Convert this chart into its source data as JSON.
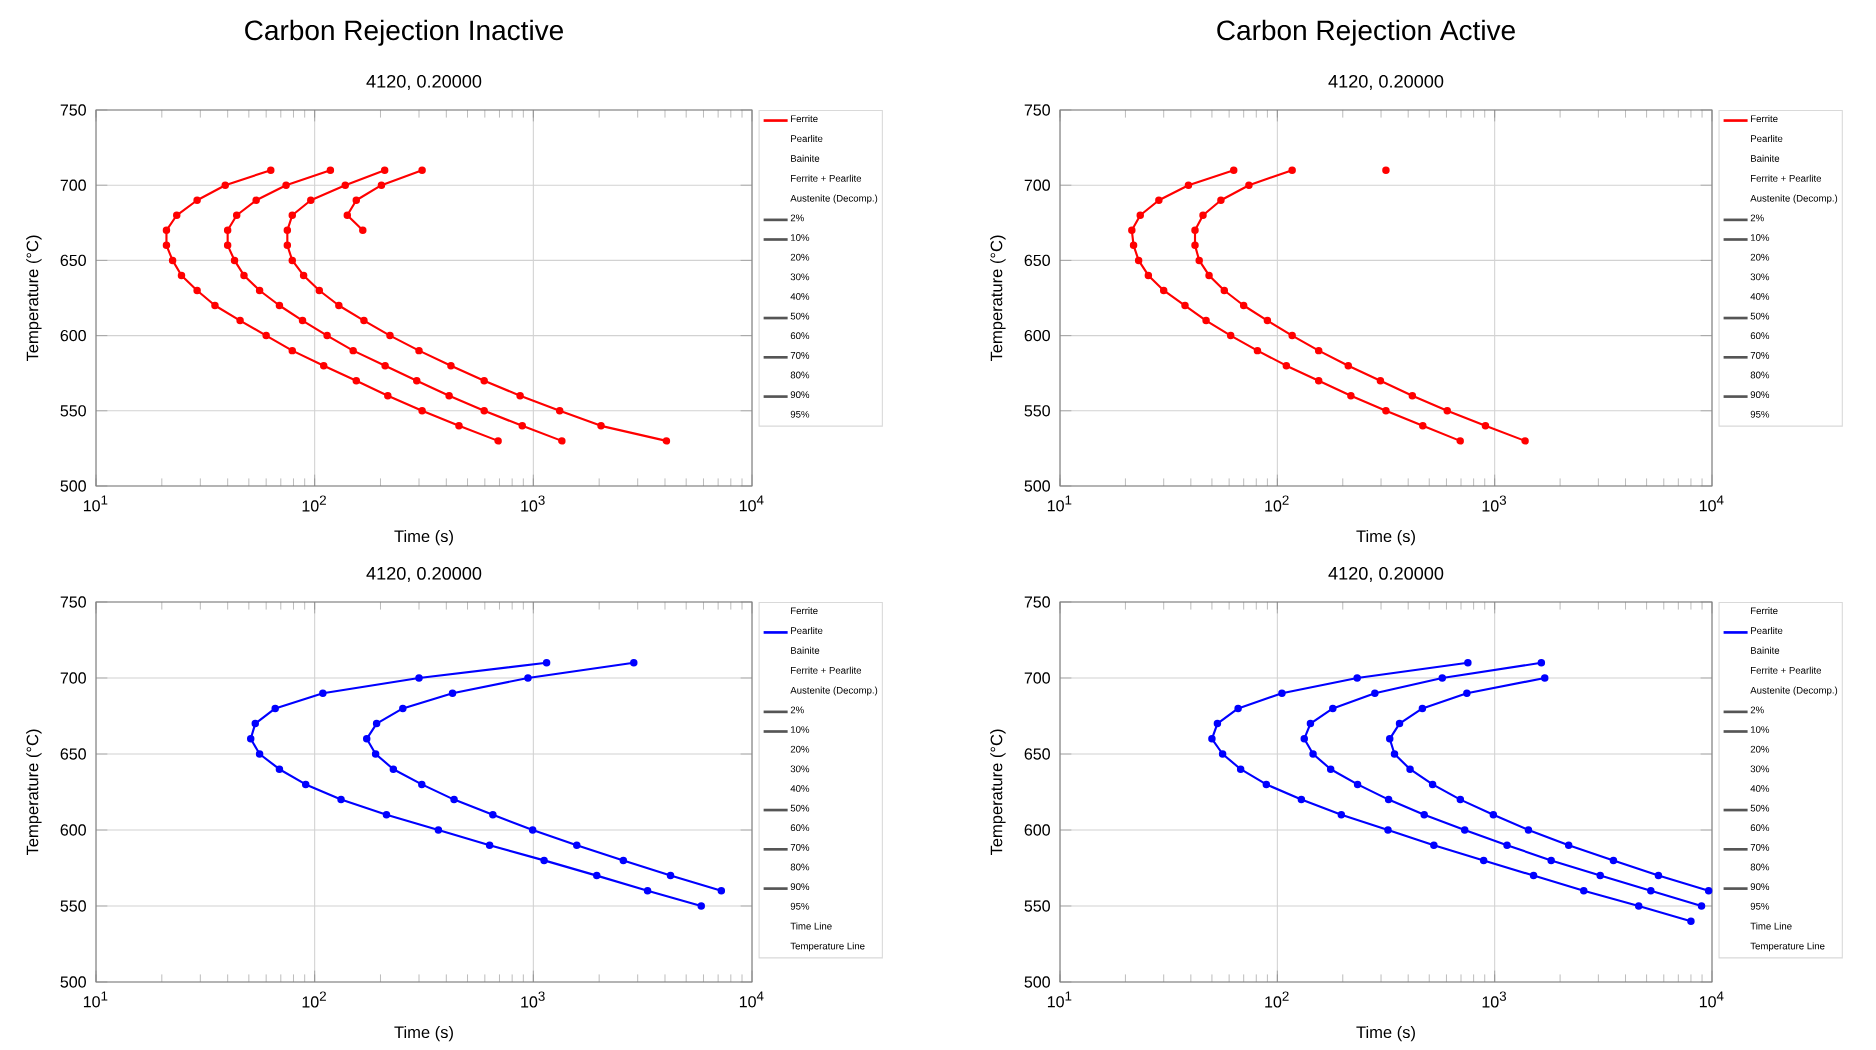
{
  "chart_data": [
    {
      "type": "line",
      "title": "Carbon Rejection Inactive",
      "subtitle": "4120, 0.20000",
      "xlabel": "Time (s)",
      "ylabel": "Temperature (°C)",
      "log": "x",
      "xlim": [
        10,
        10000
      ],
      "ylim": [
        500,
        750
      ],
      "xticks": [
        {
          "value": 10,
          "label": "10$^{1}$"
        },
        {
          "value": 100,
          "label": "10$^{2}$"
        },
        {
          "value": 1000,
          "label": "10$^{3}$"
        },
        {
          "value": 10000,
          "label": "10$^{4}$"
        }
      ],
      "yticks": [
        500,
        550,
        600,
        650,
        700,
        750
      ],
      "grid": true,
      "legend": "right",
      "marker": "circle",
      "line_style": "solid",
      "series": [
        {
          "name": "Ferrite",
          "color": "#ff0000",
          "x": [
            63,
            39,
            29,
            23.4,
            21,
            21,
            22.4,
            24.6,
            29,
            35,
            45.6,
            60,
            79,
            110,
            155,
            216,
            310,
            457,
            690
          ],
          "values": [
            710,
            700,
            690,
            680,
            670,
            660,
            650,
            640,
            630,
            620,
            610,
            600,
            590,
            580,
            570,
            560,
            550,
            540,
            530
          ]
        },
        {
          "name": "Pearlite"
        },
        {
          "name": "Bainite"
        },
        {
          "name": "Ferrite + Pearlite"
        },
        {
          "name": "Austenite (Decomp.)"
        },
        {
          "name": "2%",
          "color": "#555555"
        },
        {
          "name": "10%",
          "color": "#555555"
        },
        {
          "name": "20%"
        },
        {
          "name": "30%"
        },
        {
          "name": "40%"
        },
        {
          "name": "50%",
          "color": "#555555"
        },
        {
          "name": "60%"
        },
        {
          "name": "70%",
          "color": "#555555"
        },
        {
          "name": "80%"
        },
        {
          "name": "90%",
          "color": "#555555"
        },
        {
          "name": "95%"
        },
        {
          "color": "#ff0000",
          "x": [
            118,
            74,
            54,
            44,
            40,
            40,
            43,
            47.5,
            56,
            69,
            88,
            114,
            150,
            210,
            293,
            412,
            596,
            890,
            1350
          ],
          "values": [
            710,
            700,
            690,
            680,
            670,
            660,
            650,
            640,
            630,
            620,
            610,
            600,
            590,
            580,
            570,
            560,
            550,
            540,
            530
          ]
        },
        {
          "color": "#ff0000",
          "x": [
            209,
            138,
            96,
            79,
            75,
            75,
            79,
            89,
            105,
            129,
            168,
            221,
            300,
            420,
            596,
            870,
            1320,
            2040,
            4060
          ],
          "values": [
            710,
            700,
            690,
            680,
            670,
            660,
            650,
            640,
            630,
            620,
            610,
            600,
            590,
            580,
            570,
            560,
            550,
            540,
            530
          ]
        },
        {
          "color": "#ff0000",
          "x": [
            310,
            202,
            155,
            141,
            166
          ],
          "values": [
            710,
            700,
            690,
            680,
            670
          ]
        }
      ]
    },
    {
      "type": "line",
      "title": "Carbon Rejection Active",
      "subtitle": "4120, 0.20000",
      "xlabel": "Time (s)",
      "ylabel": "Temperature (°C)",
      "log": "x",
      "xlim": [
        10,
        10000
      ],
      "ylim": [
        500,
        750
      ],
      "xticks": [
        {
          "value": 10,
          "label": "10$^{1}$"
        },
        {
          "value": 100,
          "label": "10$^{2}$"
        },
        {
          "value": 1000,
          "label": "10$^{3}$"
        },
        {
          "value": 10000,
          "label": "10$^{4}$"
        }
      ],
      "yticks": [
        500,
        550,
        600,
        650,
        700,
        750
      ],
      "grid": true,
      "legend": "right",
      "marker": "circle",
      "line_style": "solid",
      "series": [
        {
          "name": "Ferrite",
          "color": "#ff0000",
          "x": [
            63,
            39,
            28.5,
            23.4,
            21.4,
            21.8,
            23,
            25.5,
            30,
            37.6,
            47,
            61,
            81,
            110,
            155,
            218,
            316,
            467,
            694
          ],
          "values": [
            710,
            700,
            690,
            680,
            670,
            660,
            650,
            640,
            630,
            620,
            610,
            600,
            590,
            580,
            570,
            560,
            550,
            540,
            530
          ]
        },
        {
          "name": "Pearlite"
        },
        {
          "name": "Bainite"
        },
        {
          "name": "Ferrite + Pearlite"
        },
        {
          "name": "Austenite (Decomp.)"
        },
        {
          "name": "2%",
          "color": "#555555"
        },
        {
          "name": "10%",
          "color": "#555555"
        },
        {
          "name": "20%"
        },
        {
          "name": "30%"
        },
        {
          "name": "40%"
        },
        {
          "name": "50%",
          "color": "#555555"
        },
        {
          "name": "60%"
        },
        {
          "name": "70%",
          "color": "#555555"
        },
        {
          "name": "80%"
        },
        {
          "name": "90%",
          "color": "#555555"
        },
        {
          "name": "95%"
        },
        {
          "color": "#ff0000",
          "x": [
            117,
            74,
            55,
            45.5,
            41.8,
            41.8,
            43.7,
            48.5,
            57,
            70,
            90,
            117,
            155,
            212,
            298,
            418,
            605,
            907,
            1380
          ],
          "values": [
            710,
            700,
            690,
            680,
            670,
            660,
            650,
            640,
            630,
            620,
            610,
            600,
            590,
            580,
            570,
            560,
            550,
            540,
            530
          ]
        },
        {
          "color": "#ff0000",
          "x": [
            316
          ],
          "values": [
            710
          ]
        }
      ]
    },
    {
      "type": "line",
      "title": "4120, 0.20000",
      "xlabel": "Time (s)",
      "ylabel": "Temperature (°C)",
      "log": "x",
      "xlim": [
        10,
        10000
      ],
      "ylim": [
        500,
        750
      ],
      "xticks": [
        {
          "value": 10,
          "label": "10$^{1}$"
        },
        {
          "value": 100,
          "label": "10$^{2}$"
        },
        {
          "value": 1000,
          "label": "10$^{3}$"
        },
        {
          "value": 10000,
          "label": "10$^{4}$"
        }
      ],
      "yticks": [
        500,
        550,
        600,
        650,
        700,
        750
      ],
      "grid": true,
      "legend": "right",
      "marker": "circle",
      "line_style": "solid",
      "series": [
        {
          "name": "Ferrite"
        },
        {
          "name": "Pearlite",
          "color": "#0000ff",
          "x": [
            1150,
            300,
            109,
            66,
            53.5,
            51,
            56,
            69,
            91,
            132,
            213,
            368,
            631,
            1120,
            1950,
            3330,
            5860
          ],
          "values": [
            710,
            700,
            690,
            680,
            670,
            660,
            650,
            640,
            630,
            620,
            610,
            600,
            590,
            580,
            570,
            560,
            550
          ]
        },
        {
          "name": "Bainite"
        },
        {
          "name": "Ferrite + Pearlite"
        },
        {
          "name": "Austenite (Decomp.)"
        },
        {
          "name": "2%",
          "color": "#555555"
        },
        {
          "name": "10%",
          "color": "#555555"
        },
        {
          "name": "20%"
        },
        {
          "name": "30%"
        },
        {
          "name": "40%"
        },
        {
          "name": "50%",
          "color": "#555555"
        },
        {
          "name": "60%"
        },
        {
          "name": "70%",
          "color": "#555555"
        },
        {
          "name": "80%"
        },
        {
          "name": "90%",
          "color": "#555555"
        },
        {
          "name": "95%"
        },
        {
          "name": "Time Line"
        },
        {
          "name": "Temperature Line"
        },
        {
          "color": "#0000ff",
          "x": [
            2880,
            945,
            427,
            253,
            192,
            173,
            190,
            229,
            309,
            434,
            653,
            993,
            1580,
            2580,
            4240,
            7240
          ],
          "values": [
            710,
            700,
            690,
            680,
            670,
            660,
            650,
            640,
            630,
            620,
            610,
            600,
            590,
            580,
            570,
            560
          ]
        }
      ]
    },
    {
      "type": "line",
      "title": "4120, 0.20000",
      "xlabel": "Time (s)",
      "ylabel": "Temperature (°C)",
      "log": "x",
      "xlim": [
        10,
        10000
      ],
      "ylim": [
        500,
        750
      ],
      "xticks": [
        {
          "value": 10,
          "label": "10$^{1}$"
        },
        {
          "value": 100,
          "label": "10$^{2}$"
        },
        {
          "value": 1000,
          "label": "10$^{3}$"
        },
        {
          "value": 10000,
          "label": "10$^{4}$"
        }
      ],
      "yticks": [
        500,
        550,
        600,
        650,
        700,
        750
      ],
      "grid": true,
      "legend": "right",
      "marker": "circle",
      "line_style": "solid",
      "series": [
        {
          "name": "Ferrite"
        },
        {
          "name": "Pearlite",
          "color": "#0000ff",
          "x": [
            753,
            233,
            105,
            66,
            53,
            50,
            56,
            67.8,
            89,
            129,
            197,
            323,
            525,
            890,
            1510,
            2570,
            4600,
            8000
          ],
          "values": [
            710,
            700,
            690,
            680,
            670,
            660,
            650,
            640,
            630,
            620,
            610,
            600,
            590,
            580,
            570,
            560,
            550,
            540
          ]
        },
        {
          "name": "Bainite"
        },
        {
          "name": "Ferrite + Pearlite"
        },
        {
          "name": "Austenite (Decomp.)"
        },
        {
          "name": "2%",
          "color": "#555555"
        },
        {
          "name": "10%",
          "color": "#555555"
        },
        {
          "name": "20%"
        },
        {
          "name": "30%"
        },
        {
          "name": "40%"
        },
        {
          "name": "50%",
          "color": "#555555"
        },
        {
          "name": "60%"
        },
        {
          "name": "70%",
          "color": "#555555"
        },
        {
          "name": "80%"
        },
        {
          "name": "90%",
          "color": "#555555"
        },
        {
          "name": "95%"
        },
        {
          "name": "Time Line"
        },
        {
          "name": "Temperature Line"
        },
        {
          "color": "#0000ff",
          "x": [
            1640,
            574,
            281,
            180,
            142,
            133,
            146,
            176,
            234,
            325,
            474,
            728,
            1140,
            1820,
            3060,
            5230,
            8950
          ],
          "values": [
            710,
            700,
            690,
            680,
            670,
            660,
            650,
            640,
            630,
            620,
            610,
            600,
            590,
            580,
            570,
            560,
            550
          ]
        },
        {
          "color": "#0000ff",
          "x": [
            1700,
            745,
            465,
            365,
            329,
            346,
            408,
            518,
            695,
            986,
            1430,
            2190,
            3520,
            5670,
            9650
          ],
          "values": [
            700,
            690,
            680,
            670,
            660,
            650,
            640,
            630,
            620,
            610,
            600,
            590,
            580,
            570,
            560
          ]
        }
      ]
    }
  ]
}
